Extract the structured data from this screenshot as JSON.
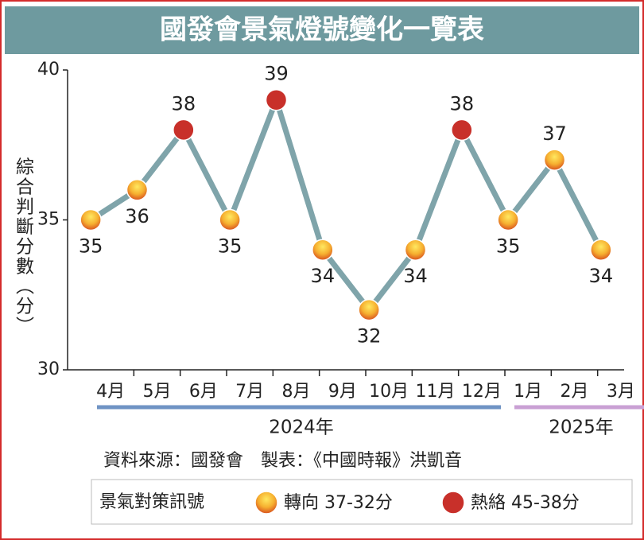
{
  "chart_data": {
    "type": "line",
    "title": "國發會景氣燈號變化一覽表",
    "y_label": "綜合判斷分數（分）",
    "groups": [
      {
        "name": "2024年",
        "color": "#6f93c4",
        "categories": [
          "4月",
          "5月",
          "6月",
          "7月",
          "8月",
          "9月",
          "10月",
          "11月",
          "12月"
        ]
      },
      {
        "name": "2025年",
        "color": "#c9a0d4",
        "categories": [
          "1月",
          "2月",
          "3月"
        ]
      }
    ],
    "values": [
      35,
      36,
      38,
      35,
      39,
      34,
      32,
      34,
      38,
      35,
      37,
      34
    ],
    "marker_colors": [
      "#f0a020",
      "#f0a020",
      "#c8302a",
      "#f0a020",
      "#c8302a",
      "#f0a020",
      "#f0a020",
      "#f0a020",
      "#c8302a",
      "#f0a020",
      "#f0a020",
      "#f0a020"
    ],
    "line_color": "#7fa4aa",
    "ylim": [
      30,
      40
    ],
    "yticks": [
      30,
      35,
      40
    ],
    "source": "資料來源：國發會　製表：《中國時報》洪凱音",
    "legend": {
      "title": "景氣對策訊號",
      "items": [
        {
          "name": "轉向 37-32分",
          "color": "#f0a020"
        },
        {
          "name": "熱絡 45-38分",
          "color": "#c8302a"
        }
      ]
    }
  }
}
